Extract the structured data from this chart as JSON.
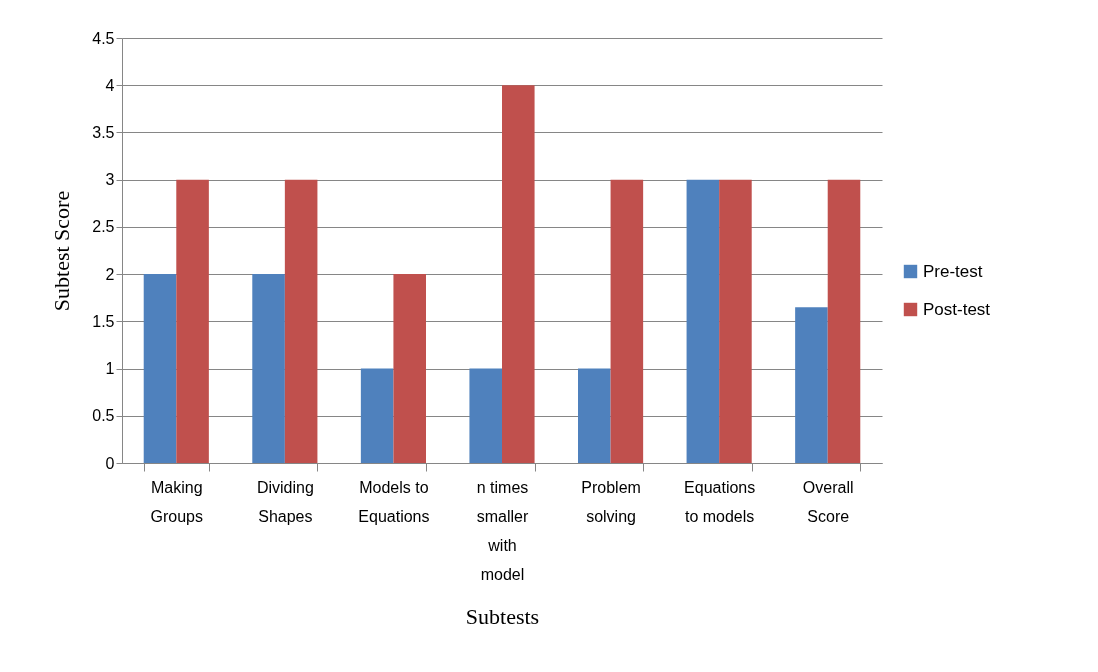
{
  "chart_data": {
    "type": "bar",
    "xlabel": "Subtests",
    "ylabel": "Subtest Score",
    "categories": [
      "Making Groups",
      "Dividing Shapes",
      "Models to Equations",
      "n times smaller with model",
      "Problem solving",
      "Equations to models",
      "Overall Score"
    ],
    "series": [
      {
        "name": "Pre-test",
        "color": "#4f81bd",
        "values": [
          2,
          2,
          1,
          1,
          1,
          3,
          1.65
        ]
      },
      {
        "name": "Post-test",
        "color": "#c0504d",
        "values": [
          3,
          3,
          2,
          4,
          3,
          3,
          3
        ]
      }
    ],
    "ylim": [
      0,
      4.5
    ],
    "yticks": [
      0,
      0.5,
      1,
      1.5,
      2,
      2.5,
      3,
      3.5,
      4,
      4.5
    ],
    "grid": "y",
    "legend": "right"
  }
}
